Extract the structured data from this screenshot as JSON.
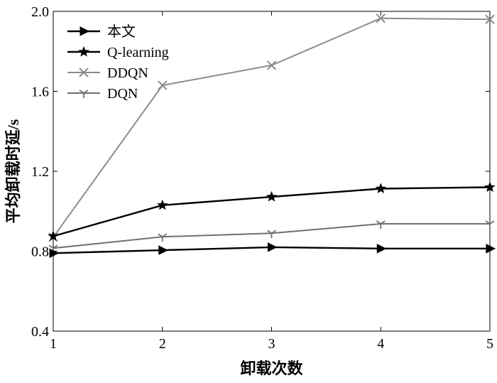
{
  "chart_data": {
    "type": "line",
    "xlabel": "卸载次数",
    "ylabel": "平均卸载时延/s",
    "x": [
      1,
      2,
      3,
      4,
      5
    ],
    "xlim": [
      1,
      5
    ],
    "ylim": [
      0.4,
      2.0
    ],
    "x_ticks": [
      "1",
      "2",
      "3",
      "4",
      "5"
    ],
    "y_ticks": [
      "0.4",
      "0.8",
      "1.2",
      "1.6",
      "2.0"
    ],
    "grid": false,
    "legend_position": "top-left",
    "series": [
      {
        "name": "本文",
        "values": [
          0.79,
          0.805,
          0.82,
          0.813,
          0.813
        ],
        "color": "#000000",
        "marker": "triangle-right"
      },
      {
        "name": "Q-learning",
        "values": [
          0.875,
          1.03,
          1.072,
          1.113,
          1.12
        ],
        "color": "#000000",
        "marker": "star"
      },
      {
        "name": "DDQN",
        "values": [
          0.87,
          1.63,
          1.73,
          1.965,
          1.96
        ],
        "color": "#8c8c8c",
        "marker": "x"
      },
      {
        "name": "DQN",
        "values": [
          0.815,
          0.872,
          0.89,
          0.937,
          0.937
        ],
        "color": "#707070",
        "marker": "tri-down"
      }
    ]
  }
}
